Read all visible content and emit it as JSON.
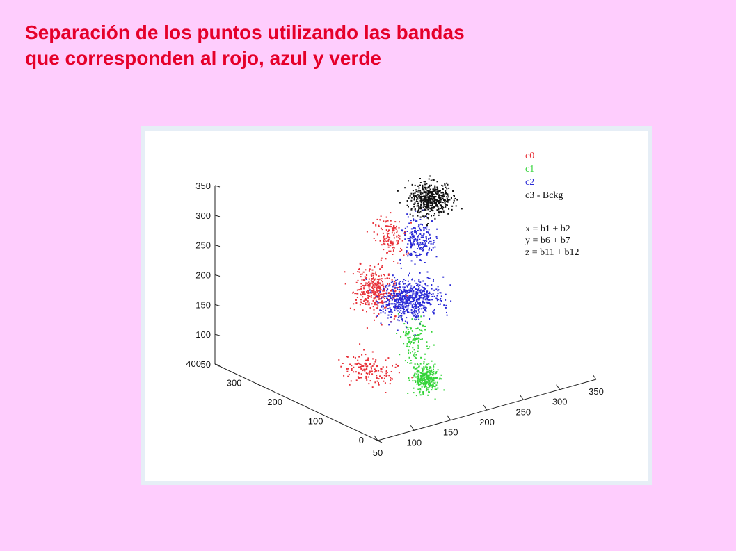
{
  "slide": {
    "title_line1": "Separación de los puntos utilizando las bandas",
    "title_line2": "que corresponden al rojo, azul y verde"
  },
  "colors": {
    "background": "#fecdfd",
    "title": "#e5002a",
    "frame": "#e6eef6",
    "c0": "#e8323a",
    "c1": "#35d43a",
    "c2": "#2a2ad6",
    "c3": "#111111"
  },
  "chart_data": {
    "type": "scatter",
    "dimensions": "3d",
    "title": "",
    "axes": {
      "x": {
        "label": "",
        "range": [
          0,
          400
        ],
        "ticks": [
          "0",
          "100",
          "200",
          "300",
          "400"
        ]
      },
      "y": {
        "label": "",
        "range": [
          50,
          350
        ],
        "ticks": [
          "50",
          "100",
          "150",
          "200",
          "250",
          "300",
          "350"
        ]
      },
      "z": {
        "label": "",
        "range": [
          50,
          350
        ],
        "ticks": [
          "50",
          "100",
          "150",
          "200",
          "250",
          "300",
          "350"
        ]
      }
    },
    "grid": false,
    "legend": {
      "placement": "top-right",
      "entries": [
        "c0",
        "c1",
        "c2",
        "c3 - Bckg"
      ]
    },
    "annotations": [
      "x = b1 + b2",
      "y = b6 + b7",
      "z = b11 + b12"
    ],
    "series": [
      {
        "name": "c0",
        "color": "#e8323a",
        "clusters": [
          {
            "center": [
              200,
              150,
              70
            ],
            "spread": [
              45,
              20,
              15
            ],
            "n": 150
          },
          {
            "center": [
              210,
              165,
              195
            ],
            "spread": [
              35,
              15,
              30
            ],
            "n": 340
          },
          {
            "center": [
              200,
              180,
              280
            ],
            "spread": [
              25,
              12,
              30
            ],
            "n": 130
          }
        ]
      },
      {
        "name": "c1",
        "color": "#35d43a",
        "clusters": [
          {
            "center": [
              170,
              210,
              45
            ],
            "spread": [
              20,
              10,
              18
            ],
            "n": 300
          },
          {
            "center": [
              180,
              200,
              110
            ],
            "spread": [
              20,
              10,
              30
            ],
            "n": 110
          }
        ]
      },
      {
        "name": "c2",
        "color": "#2a2ad6",
        "clusters": [
          {
            "center": [
              200,
              205,
              170
            ],
            "spread": [
              30,
              28,
              25
            ],
            "n": 600
          },
          {
            "center": [
              200,
              218,
              265
            ],
            "spread": [
              20,
              12,
              32
            ],
            "n": 200
          }
        ]
      },
      {
        "name": "c3 - Bckg",
        "color": "#111111",
        "clusters": [
          {
            "center": [
              195,
              232,
              330
            ],
            "spread": [
              25,
              18,
              20
            ],
            "n": 500
          }
        ]
      }
    ]
  }
}
